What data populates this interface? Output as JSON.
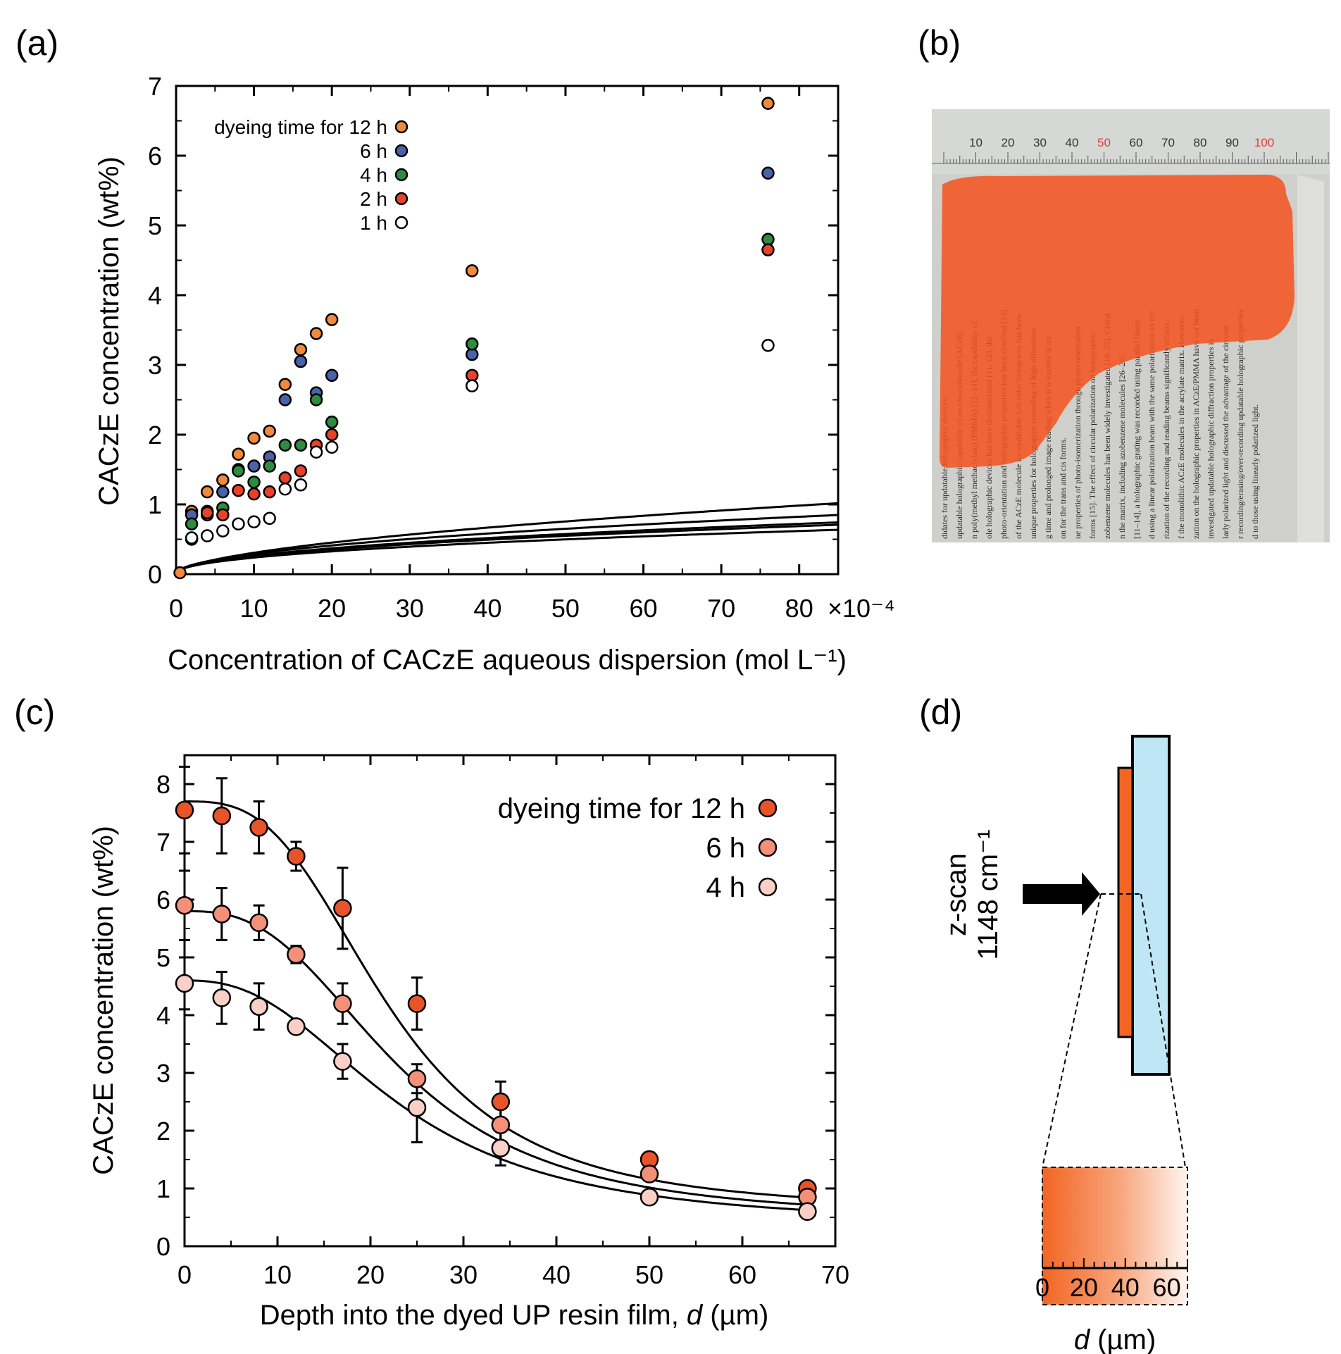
{
  "panels": {
    "a": {
      "label": "(a)"
    },
    "b": {
      "label": "(b)"
    },
    "c": {
      "label": "(c)"
    },
    "d": {
      "label": "(d)"
    }
  },
  "colors": {
    "12h": "#f08a3c",
    "6h": "#4a62a8",
    "4h": "#2e8b40",
    "2h": "#e8432a",
    "1h": "#ffffff",
    "c_12h": "#e8542a",
    "c_6h": "#f4907a",
    "c_4h": "#f9cfc6",
    "film_orange": "#f26522",
    "substrate_blue": "#bfe6f4"
  },
  "chart_data": [
    {
      "id": "a",
      "type": "scatter",
      "title": "",
      "xlabel": "Concentration of CACzE aqueous dispersion (mol L⁻¹)",
      "x_multiplier_label": "×10⁻⁴",
      "x_ticks": [
        "0",
        "10",
        "20",
        "30",
        "40",
        "50",
        "60",
        "70",
        "80"
      ],
      "ylabel": "CACzE concentration (wt%)",
      "y_ticks": [
        "0",
        "1",
        "2",
        "3",
        "4",
        "5",
        "6",
        "7"
      ],
      "xlim": [
        0,
        85
      ],
      "ylim": [
        0,
        7
      ],
      "legend_position": "top-left",
      "series": [
        {
          "name": "dyeing time for 12 h",
          "color_key": "12h",
          "points": [
            [
              0.5,
              0.02
            ],
            [
              2,
              0.9
            ],
            [
              4,
              1.18
            ],
            [
              6,
              1.35
            ],
            [
              8,
              1.72
            ],
            [
              10,
              1.95
            ],
            [
              12,
              2.05
            ],
            [
              14,
              2.72
            ],
            [
              16,
              3.22
            ],
            [
              18,
              3.45
            ],
            [
              20,
              3.65
            ],
            [
              38,
              4.35
            ],
            [
              76,
              6.75
            ]
          ],
          "fit": {
            "a": 0.0845,
            "b": 0.56
          }
        },
        {
          "name": "6 h",
          "color_key": "6h",
          "points": [
            [
              2,
              0.85
            ],
            [
              4,
              0.9
            ],
            [
              6,
              1.18
            ],
            [
              8,
              1.5
            ],
            [
              10,
              1.55
            ],
            [
              12,
              1.68
            ],
            [
              14,
              2.5
            ],
            [
              16,
              3.05
            ],
            [
              18,
              2.6
            ],
            [
              20,
              2.85
            ],
            [
              38,
              3.15
            ],
            [
              76,
              5.75
            ]
          ],
          "fit": {
            "a": 0.092,
            "b": 0.5
          }
        },
        {
          "name": "4 h",
          "color_key": "4h",
          "points": [
            [
              2,
              0.72
            ],
            [
              4,
              0.85
            ],
            [
              6,
              0.95
            ],
            [
              8,
              1.48
            ],
            [
              10,
              1.32
            ],
            [
              12,
              1.55
            ],
            [
              14,
              1.85
            ],
            [
              16,
              1.85
            ],
            [
              18,
              2.5
            ],
            [
              20,
              2.18
            ],
            [
              38,
              3.3
            ],
            [
              76,
              4.8
            ]
          ],
          "fit": {
            "a": 0.088,
            "b": 0.48
          }
        },
        {
          "name": "2 h",
          "color_key": "2h",
          "points": [
            [
              2,
              0.5
            ],
            [
              4,
              0.88
            ],
            [
              6,
              0.85
            ],
            [
              8,
              1.2
            ],
            [
              10,
              1.15
            ],
            [
              12,
              1.18
            ],
            [
              14,
              1.38
            ],
            [
              16,
              1.48
            ],
            [
              18,
              1.85
            ],
            [
              20,
              2.0
            ],
            [
              38,
              2.85
            ],
            [
              76,
              4.65
            ]
          ],
          "fit": {
            "a": 0.084,
            "b": 0.48
          }
        },
        {
          "name": "1 h",
          "color_key": "1h",
          "points": [
            [
              2,
              0.52
            ],
            [
              4,
              0.55
            ],
            [
              6,
              0.62
            ],
            [
              8,
              0.72
            ],
            [
              10,
              0.75
            ],
            [
              12,
              0.8
            ],
            [
              14,
              1.22
            ],
            [
              16,
              1.28
            ],
            [
              18,
              1.75
            ],
            [
              20,
              1.82
            ],
            [
              38,
              2.7
            ],
            [
              76,
              3.28
            ]
          ],
          "fit": {
            "a": 0.0824,
            "b": 0.46
          }
        }
      ]
    },
    {
      "id": "c",
      "type": "scatter",
      "title": "",
      "xlabel": "Depth into the dyed UP resin film, ",
      "xlabel_italic": "d",
      "xlabel_unit": " (µm)",
      "x_ticks": [
        "0",
        "10",
        "20",
        "30",
        "40",
        "50",
        "60",
        "70"
      ],
      "ylabel": "CACzE concentration (wt%)",
      "y_ticks": [
        "0",
        "1",
        "2",
        "3",
        "4",
        "5",
        "6",
        "7",
        "8"
      ],
      "xlim": [
        0,
        70
      ],
      "ylim": [
        0,
        8.5
      ],
      "legend_position": "top-right",
      "series": [
        {
          "name": "dyeing time for 12 h",
          "color_key": "c_12h",
          "points": [
            [
              0,
              7.55,
              0.75
            ],
            [
              4,
              7.45,
              0.65
            ],
            [
              8,
              7.25,
              0.45
            ],
            [
              12,
              6.75,
              0.25
            ],
            [
              17,
              5.85,
              0.7
            ],
            [
              25,
              4.2,
              0.45
            ],
            [
              34,
              2.5,
              0.35
            ],
            [
              50,
              1.5,
              0.12
            ],
            [
              67,
              1.0,
              0.1
            ]
          ],
          "fit": {
            "top": 7.7,
            "bottom": 0.6,
            "x0": 22.0,
            "p": 3.0
          }
        },
        {
          "name": "6 h",
          "color_key": "c_6h",
          "points": [
            [
              0,
              5.9,
              0.6
            ],
            [
              4,
              5.75,
              0.45
            ],
            [
              8,
              5.6,
              0.3
            ],
            [
              12,
              5.05,
              0.15
            ],
            [
              17,
              4.2,
              0.35
            ],
            [
              25,
              2.9,
              0.25
            ],
            [
              34,
              2.1,
              0.3
            ],
            [
              50,
              1.25,
              0.05
            ],
            [
              67,
              0.85,
              0.05
            ]
          ],
          "fit": {
            "top": 5.8,
            "bottom": 0.45,
            "x0": 23.0,
            "p": 2.75
          }
        },
        {
          "name": "4 h",
          "color_key": "c_4h",
          "points": [
            [
              0,
              4.55,
              0.45
            ],
            [
              4,
              4.3,
              0.45
            ],
            [
              8,
              4.15,
              0.4
            ],
            [
              12,
              3.8,
              0.1
            ],
            [
              17,
              3.2,
              0.3
            ],
            [
              25,
              2.4,
              0.6
            ],
            [
              34,
              1.7,
              0.3
            ],
            [
              50,
              0.85,
              0.05
            ],
            [
              67,
              0.6,
              0.05
            ]
          ],
          "fit": {
            "top": 4.6,
            "bottom": 0.35,
            "x0": 23.0,
            "p": 2.5
          }
        }
      ]
    }
  ],
  "panel_d": {
    "arrow_label_1": "1148 cm⁻¹",
    "arrow_label_2": "z-scan",
    "scale_ticks": [
      "0",
      "20",
      "40",
      "60"
    ],
    "scale_label_italic": "d",
    "scale_label_unit": " (µm)"
  },
  "panel_b": {
    "ruler_numbers": [
      "10",
      "20",
      "30",
      "40",
      "50",
      "60",
      "70",
      "80",
      "90",
      "100"
    ],
    "ruler_red": [
      "50",
      "100"
    ],
    "page_lines": [
      "didates for updatable holographic devices.",
      "updatable holographic capability of an azo-carbazole (ACzE)",
      "n poly(methyl methacrylate) (PMMA) [11–14]; the capability of",
      "ole holographic devices has been demonstrated [11, 12], the",
      "photo-orientation and holographic properties has been clarified [13].",
      "of the ACzE molecule for updatable full-color holograms has been",
      "unique properties for holographic recording of high diffraction",
      "g time and prolonged image reading when it is excited at an",
      "on for the trans and cis forms.",
      "ue properties of photo-isomerization through photo-orientation",
      "forms [15]. The effect of circular polarization on holographic",
      "zobenzene molecules has been widely investigated [16–25]. Chiral",
      "n the matrix, including azobenzene molecules [26–28].",
      "[11–14], a holographic grating was recorded using parallel linear",
      "d using a linear polarization beam with the same polarization as the",
      "rization of the recording and reading beams significantly affects",
      "f the monolithic ACzE molecules in the acrylate matrix. However,",
      "zation on the holographic properties in ACzE/PMMA have not been",
      "investigated updatable holographic diffraction properties in",
      "larly polarized light and discussed the advantage of the circular",
      "r recording/erasing/over-recording updatable holographic properties",
      "d to those using linearly polarized light."
    ]
  }
}
